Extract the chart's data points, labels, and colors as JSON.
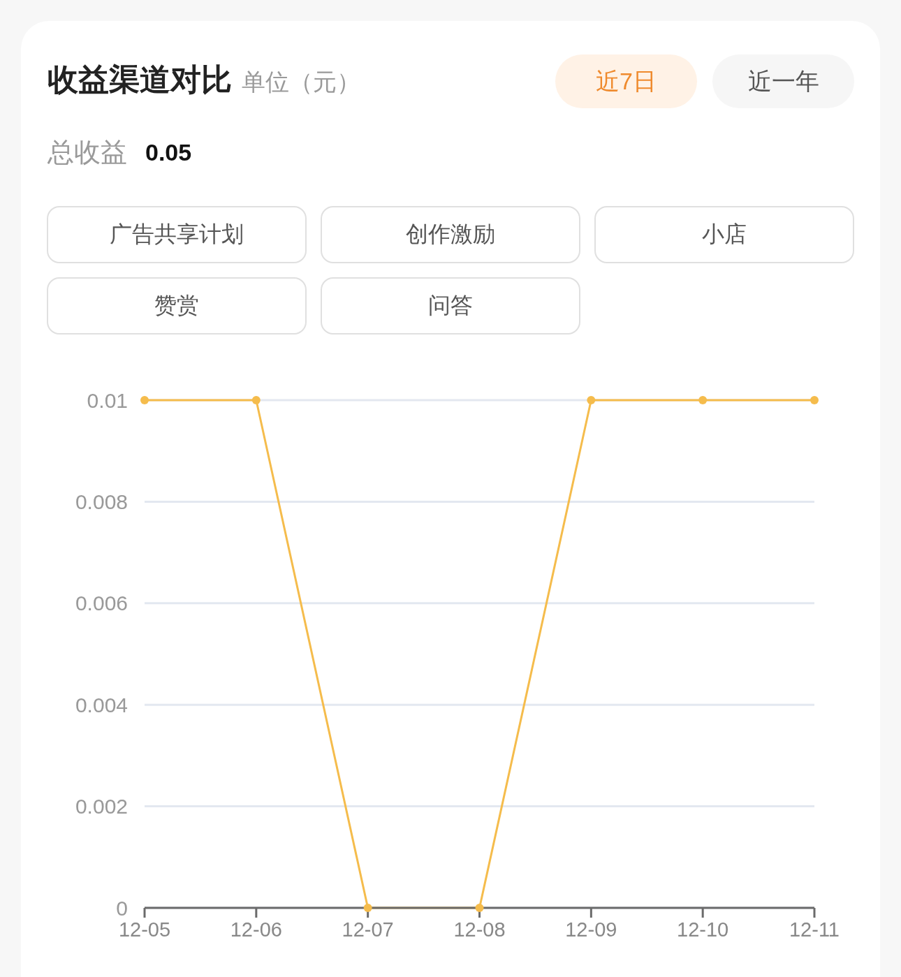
{
  "chart_data": {
    "type": "line",
    "title": "收益渠道对比",
    "subtitle": "单位（元）",
    "annotations": [
      "近7日",
      "近一年",
      "总收益",
      "0.05",
      "广告共享计划",
      "创作激励",
      "小店",
      "赞赏",
      "问答"
    ],
    "categories": [
      "12-05",
      "12-06",
      "12-07",
      "12-08",
      "12-09",
      "12-10",
      "12-11"
    ],
    "values": [
      0.01,
      0.01,
      0,
      0,
      0.01,
      0.01,
      0.01
    ],
    "color": "#f5bc4c",
    "ylim": [
      0,
      0.01
    ],
    "yticks": [
      0,
      0.002,
      0.004,
      0.006,
      0.008,
      0.01
    ],
    "grid": "y",
    "marker": "circle",
    "line_style": "solid"
  }
}
